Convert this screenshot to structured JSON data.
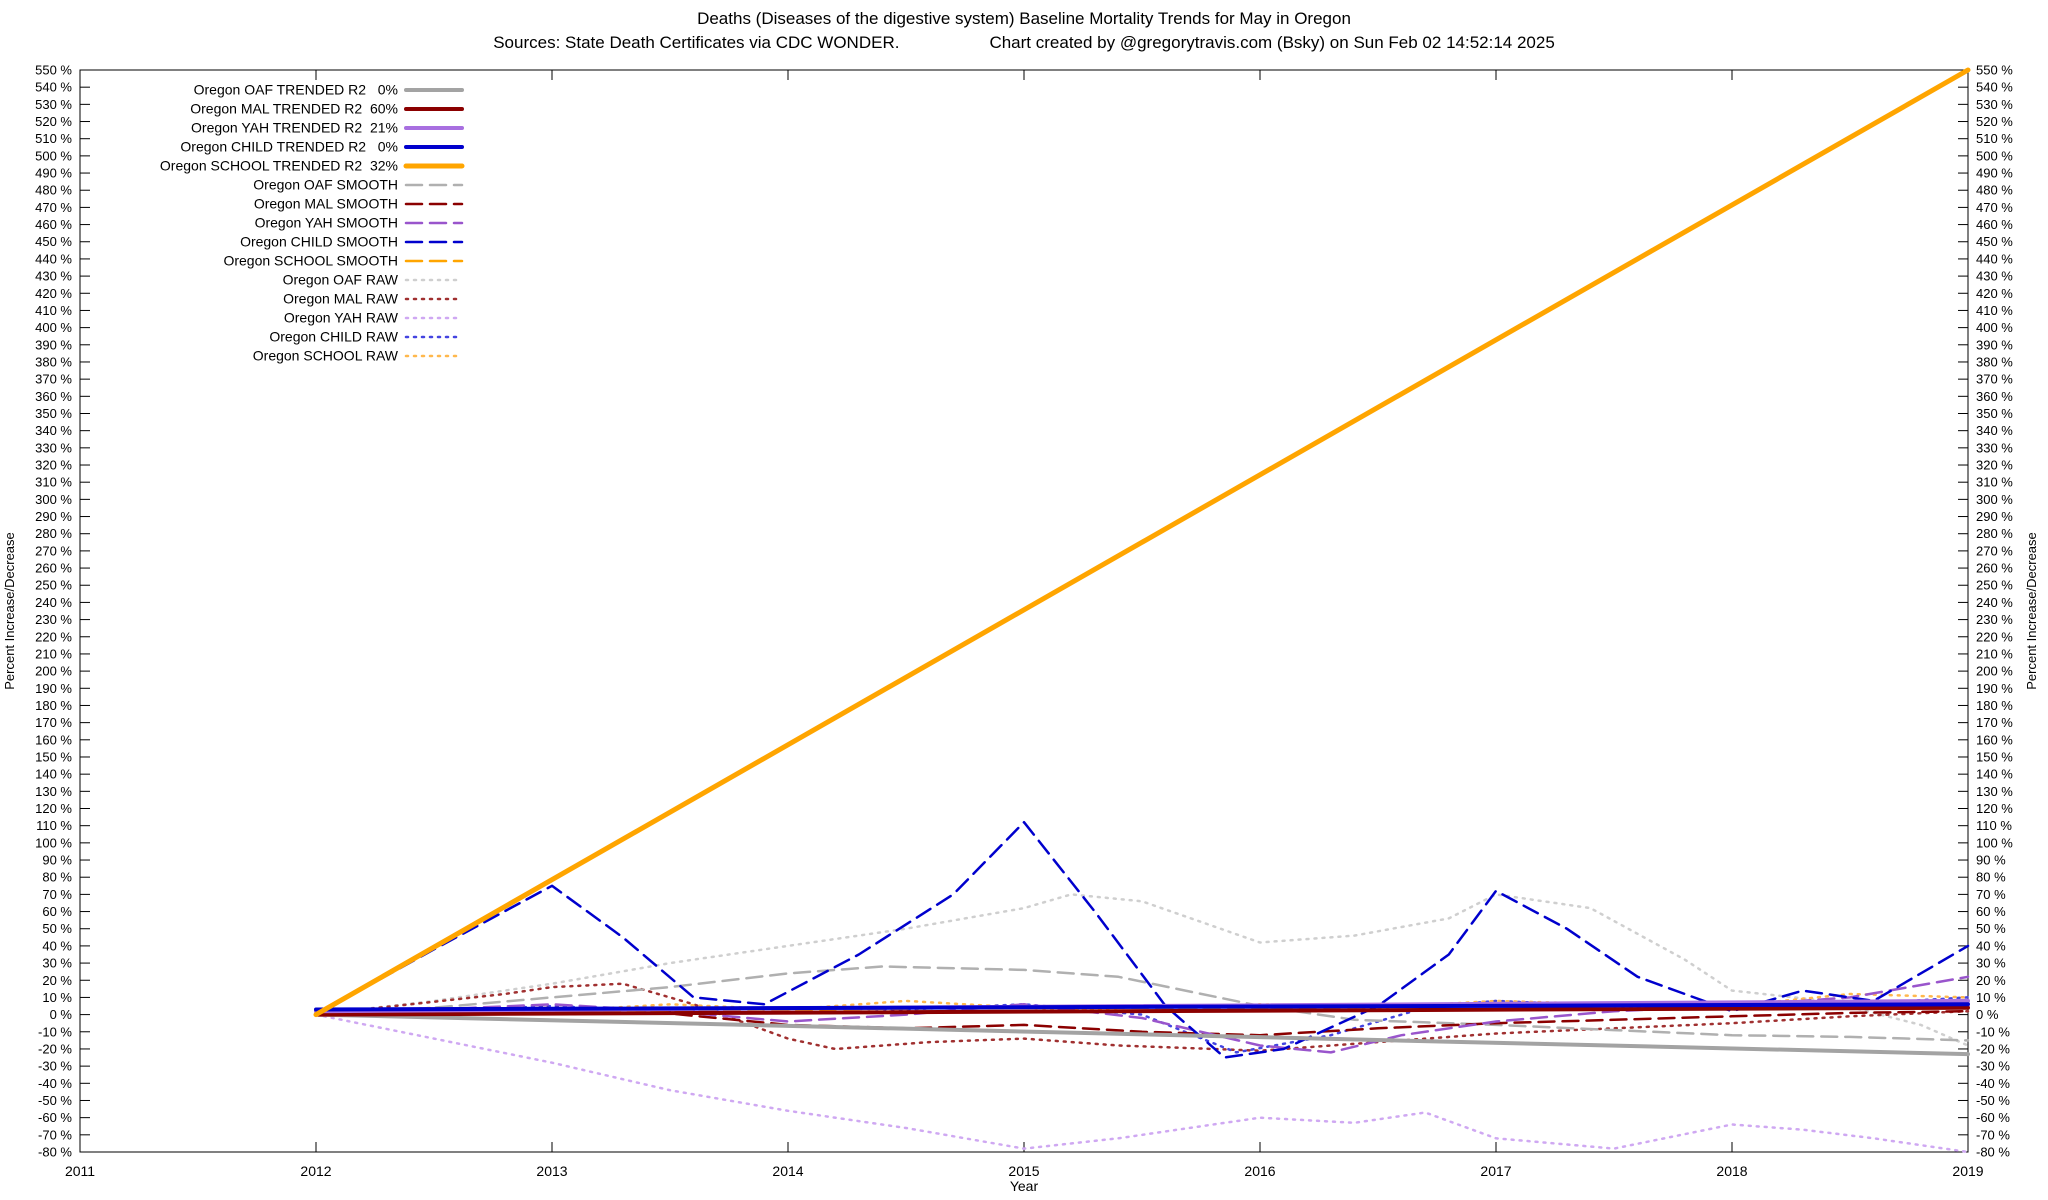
{
  "title": "Deaths (Diseases of the digestive system)  Baseline Mortality Trends for May in Oregon",
  "source": "Sources: State Death Certificates via CDC WONDER.",
  "credit": "Chart created by @gregorytravis.com (Bsky) on Sun Feb 02 14:52:14 2025",
  "chart_data": {
    "type": "line",
    "xlabel": "Year",
    "ylabel_left": "Percent Increase/Decrease",
    "ylabel_right": "Percent Increase/Decrease",
    "xlim": [
      2011,
      2019
    ],
    "ylim": [
      -80,
      550
    ],
    "ytick_step": 10,
    "tick_suffix": " %",
    "xticks": [
      2011,
      2012,
      2013,
      2014,
      2015,
      2016,
      2017,
      2018,
      2019
    ],
    "legend_position": "top-left",
    "grid": false,
    "series": [
      {
        "name": "oaf-trended",
        "label": "Oregon OAF TRENDED R2   0%",
        "style": "trended",
        "color": "#a3a3a3",
        "points": [
          [
            2012,
            0
          ],
          [
            2019,
            -23
          ]
        ]
      },
      {
        "name": "mal-trended",
        "label": "Oregon MAL TRENDED R2  60%",
        "style": "trended",
        "color": "#8b0000",
        "points": [
          [
            2012,
            0
          ],
          [
            2019,
            4
          ]
        ]
      },
      {
        "name": "yah-trended",
        "label": "Oregon YAH TRENDED R2  21%",
        "style": "trended",
        "color": "#a86fe0",
        "points": [
          [
            2012,
            2
          ],
          [
            2019,
            8
          ]
        ]
      },
      {
        "name": "child-trended",
        "label": "Oregon CHILD TRENDED R2   0%",
        "style": "trended",
        "color": "#0000cd",
        "points": [
          [
            2012,
            3
          ],
          [
            2019,
            6
          ]
        ]
      },
      {
        "name": "school-trended",
        "label": "Oregon SCHOOL TRENDED R2  32%",
        "style": "trended",
        "color": "#ffa500",
        "points": [
          [
            2012,
            0
          ],
          [
            2019,
            550
          ]
        ]
      },
      {
        "name": "oaf-smooth",
        "label": "Oregon OAF SMOOTH",
        "style": "smooth",
        "color": "#b0b0b0",
        "points": [
          [
            2012,
            0
          ],
          [
            2012.5,
            4
          ],
          [
            2013,
            10
          ],
          [
            2013.5,
            16
          ],
          [
            2014,
            24
          ],
          [
            2014.4,
            28
          ],
          [
            2015,
            26
          ],
          [
            2015.4,
            22
          ],
          [
            2016,
            5
          ],
          [
            2016.4,
            -3
          ],
          [
            2017,
            -6
          ],
          [
            2017.5,
            -9
          ],
          [
            2018,
            -12
          ],
          [
            2018.5,
            -13
          ],
          [
            2019,
            -15
          ]
        ]
      },
      {
        "name": "mal-smooth",
        "label": "Oregon MAL SMOOTH",
        "style": "smooth",
        "color": "#8b0000",
        "points": [
          [
            2012,
            0
          ],
          [
            2012.5,
            2
          ],
          [
            2013,
            4
          ],
          [
            2013.4,
            2
          ],
          [
            2014,
            -6
          ],
          [
            2014.5,
            -8
          ],
          [
            2015,
            -6
          ],
          [
            2015.5,
            -10
          ],
          [
            2016,
            -12
          ],
          [
            2016.5,
            -8
          ],
          [
            2017,
            -5
          ],
          [
            2017.5,
            -3
          ],
          [
            2018,
            -1
          ],
          [
            2018.5,
            1
          ],
          [
            2019,
            2
          ]
        ]
      },
      {
        "name": "yah-smooth",
        "label": "Oregon YAH SMOOTH",
        "style": "smooth",
        "color": "#9955cc",
        "points": [
          [
            2012,
            0
          ],
          [
            2012.5,
            3
          ],
          [
            2013,
            6
          ],
          [
            2013.5,
            2
          ],
          [
            2014,
            -4
          ],
          [
            2014.5,
            0
          ],
          [
            2015,
            6
          ],
          [
            2015.5,
            -2
          ],
          [
            2016,
            -18
          ],
          [
            2016.3,
            -22
          ],
          [
            2016.6,
            -12
          ],
          [
            2017,
            -4
          ],
          [
            2017.5,
            2
          ],
          [
            2018,
            5
          ],
          [
            2018.5,
            10
          ],
          [
            2019,
            22
          ]
        ]
      },
      {
        "name": "child-smooth",
        "label": "Oregon CHILD SMOOTH",
        "style": "smooth",
        "color": "#0000cd",
        "points": [
          [
            2012,
            0
          ],
          [
            2012.5,
            38
          ],
          [
            2013,
            75
          ],
          [
            2013.3,
            45
          ],
          [
            2013.6,
            10
          ],
          [
            2013.9,
            6
          ],
          [
            2014.3,
            35
          ],
          [
            2014.7,
            70
          ],
          [
            2015,
            112
          ],
          [
            2015.3,
            60
          ],
          [
            2015.6,
            5
          ],
          [
            2015.85,
            -25
          ],
          [
            2016.1,
            -20
          ],
          [
            2016.5,
            5
          ],
          [
            2016.8,
            35
          ],
          [
            2017,
            72
          ],
          [
            2017.3,
            50
          ],
          [
            2017.6,
            22
          ],
          [
            2018,
            2
          ],
          [
            2018.3,
            14
          ],
          [
            2018.6,
            8
          ],
          [
            2019,
            40
          ]
        ]
      },
      {
        "name": "school-smooth",
        "label": "Oregon SCHOOL SMOOTH",
        "style": "smooth",
        "color": "#ffa500",
        "points": [
          [
            2012,
            0
          ],
          [
            2013,
            2
          ],
          [
            2014,
            3
          ],
          [
            2015,
            4
          ],
          [
            2016,
            4
          ],
          [
            2017,
            5
          ],
          [
            2018,
            6
          ],
          [
            2019,
            8
          ]
        ]
      },
      {
        "name": "oaf-raw",
        "label": "Oregon OAF RAW",
        "style": "raw",
        "color": "#cfcfcf",
        "points": [
          [
            2012,
            0
          ],
          [
            2012.5,
            8
          ],
          [
            2013,
            18
          ],
          [
            2013.5,
            30
          ],
          [
            2014,
            40
          ],
          [
            2014.5,
            50
          ],
          [
            2015,
            62
          ],
          [
            2015.2,
            70
          ],
          [
            2015.5,
            66
          ],
          [
            2016,
            42
          ],
          [
            2016.4,
            46
          ],
          [
            2016.8,
            56
          ],
          [
            2017,
            70
          ],
          [
            2017.4,
            62
          ],
          [
            2017.8,
            32
          ],
          [
            2018,
            14
          ],
          [
            2018.4,
            8
          ],
          [
            2018.8,
            -6
          ],
          [
            2019,
            -18
          ]
        ]
      },
      {
        "name": "mal-raw",
        "label": "Oregon MAL RAW",
        "style": "raw",
        "color": "#a03030",
        "points": [
          [
            2012,
            0
          ],
          [
            2012.4,
            6
          ],
          [
            2012.8,
            12
          ],
          [
            2013,
            16
          ],
          [
            2013.3,
            18
          ],
          [
            2013.6,
            6
          ],
          [
            2014,
            -14
          ],
          [
            2014.2,
            -20
          ],
          [
            2014.6,
            -16
          ],
          [
            2015,
            -14
          ],
          [
            2015.4,
            -18
          ],
          [
            2016,
            -21
          ],
          [
            2016.5,
            -16
          ],
          [
            2017,
            -11
          ],
          [
            2017.5,
            -8
          ],
          [
            2018,
            -5
          ],
          [
            2018.5,
            -1
          ],
          [
            2019,
            2
          ]
        ]
      },
      {
        "name": "yah-raw",
        "label": "Oregon YAH RAW",
        "style": "raw",
        "color": "#cfa8f2",
        "points": [
          [
            2012,
            0
          ],
          [
            2012.5,
            -14
          ],
          [
            2013,
            -28
          ],
          [
            2013.5,
            -44
          ],
          [
            2014,
            -56
          ],
          [
            2014.5,
            -66
          ],
          [
            2015,
            -78
          ],
          [
            2015.4,
            -72
          ],
          [
            2016,
            -60
          ],
          [
            2016.4,
            -63
          ],
          [
            2016.7,
            -57
          ],
          [
            2017,
            -72
          ],
          [
            2017.5,
            -78
          ],
          [
            2018,
            -64
          ],
          [
            2018.3,
            -67
          ],
          [
            2018.6,
            -72
          ],
          [
            2019,
            -80
          ]
        ]
      },
      {
        "name": "child-raw",
        "label": "Oregon CHILD RAW",
        "style": "raw",
        "color": "#4444e0",
        "points": [
          [
            2012,
            0
          ],
          [
            2012.5,
            2
          ],
          [
            2013,
            5
          ],
          [
            2013.5,
            2
          ],
          [
            2014,
            4
          ],
          [
            2014.5,
            3
          ],
          [
            2015,
            6
          ],
          [
            2015.5,
            0
          ],
          [
            2015.9,
            -22
          ],
          [
            2016.3,
            -12
          ],
          [
            2016.7,
            4
          ],
          [
            2017,
            8
          ],
          [
            2017.5,
            5
          ],
          [
            2018,
            3
          ],
          [
            2018.5,
            6
          ],
          [
            2019,
            10
          ]
        ]
      },
      {
        "name": "school-raw",
        "label": "Oregon SCHOOL RAW",
        "style": "raw",
        "color": "#ffb84d",
        "points": [
          [
            2012,
            0
          ],
          [
            2012.5,
            4
          ],
          [
            2013,
            2
          ],
          [
            2013.5,
            6
          ],
          [
            2014,
            3
          ],
          [
            2014.5,
            8
          ],
          [
            2015,
            4
          ],
          [
            2015.5,
            2
          ],
          [
            2016,
            6
          ],
          [
            2016.5,
            4
          ],
          [
            2017,
            8
          ],
          [
            2017.5,
            6
          ],
          [
            2018,
            5
          ],
          [
            2018.5,
            12
          ],
          [
            2019,
            10
          ]
        ]
      }
    ]
  }
}
